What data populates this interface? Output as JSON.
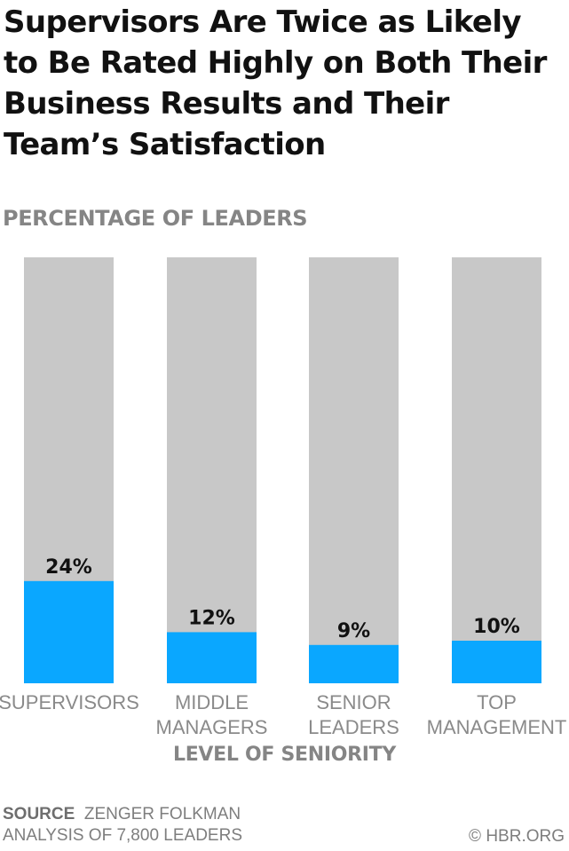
{
  "chart_data": {
    "type": "bar",
    "title": "Supervisors Are Twice as Likely to Be Rated Highly on Both Their Business Results and Their Team’s Satisfaction",
    "subtitle": "PERCENTAGE OF LEADERS",
    "xlabel": "LEVEL OF SENIORITY",
    "ylabel": "",
    "ylim": [
      0,
      100
    ],
    "grid": false,
    "categories": [
      [
        "SUPERVISORS"
      ],
      [
        "MIDDLE",
        "MANAGERS"
      ],
      [
        "SENIOR",
        "LEADERS"
      ],
      [
        "TOP",
        "MANAGEMENT"
      ]
    ],
    "values": [
      24,
      12,
      9,
      10
    ],
    "data_labels": [
      "24%",
      "12%",
      "9%",
      "10%"
    ],
    "colors": {
      "value": "#0aa7ff",
      "background": "#c8c8c8"
    }
  },
  "source": {
    "label": "SOURCE",
    "line1": "ZENGER FOLKMAN",
    "line2": "ANALYSIS OF 7,800 LEADERS"
  },
  "credit": "© HBR.ORG"
}
